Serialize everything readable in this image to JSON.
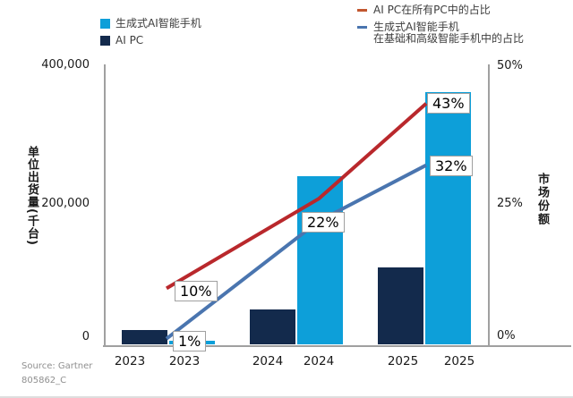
{
  "chart_data": {
    "type": "combo-bar-line",
    "years": [
      "2023",
      "2024",
      "2025"
    ],
    "x_axis_labels": [
      "2023",
      "2023",
      "2024",
      "2024",
      "2025",
      "2025"
    ],
    "left_axis": {
      "title": "单位出货量(千台)",
      "ticks": [
        "0",
        "200,000",
        "400,000"
      ],
      "range": [
        0,
        400000
      ]
    },
    "right_axis": {
      "title": "市场份额",
      "ticks": [
        "0%",
        "25%",
        "50%"
      ],
      "range_pct": [
        0,
        50
      ]
    },
    "bar_series": [
      {
        "name": "生成式AI智能手机",
        "color": "#0d9fd9",
        "values": [
          5000,
          240000,
          360000
        ]
      },
      {
        "name": "AI PC",
        "color": "#132a4c",
        "values": [
          20000,
          50000,
          110000
        ]
      }
    ],
    "line_series": [
      {
        "name": "AI PC在所有PC中的占比",
        "color": "#b9282c",
        "legend_dash_color": "#c2572f",
        "values_pct": [
          10,
          26,
          43
        ],
        "labels": [
          "10%",
          null,
          "43%"
        ]
      },
      {
        "name": "生成式AI智能手机 在基础和高级智能手机中的占比",
        "color": "#4a75af",
        "legend_dash_color": "#4a75af",
        "name_lines": [
          "生成式AI智能手机",
          "在基础和高级智能手机中的占比"
        ],
        "values_pct": [
          1,
          22,
          32
        ],
        "labels": [
          "1%",
          "22%",
          "32%"
        ]
      }
    ],
    "grid": "off",
    "legend_position": "top"
  },
  "source": {
    "line1": "Source: Gartner",
    "line2": "805862_C"
  }
}
